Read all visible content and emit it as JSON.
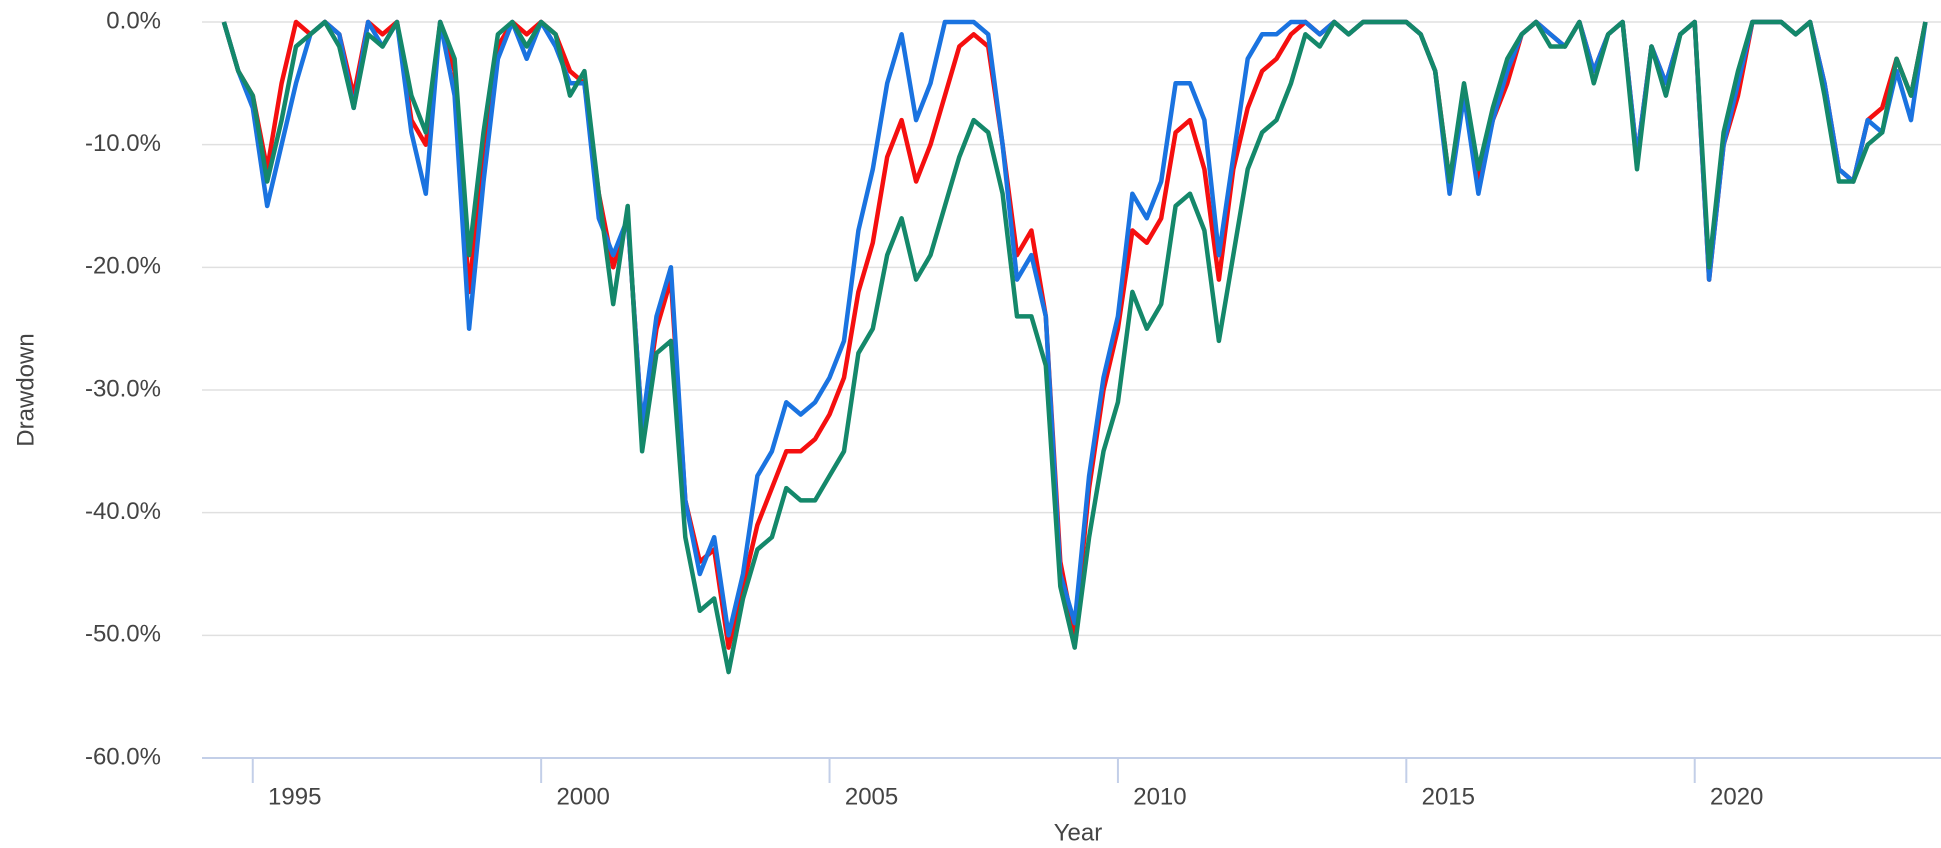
{
  "chart_data": {
    "type": "line",
    "x_label": "Year",
    "y_label": "Drawdown",
    "xlim": [
      1994.12,
      2024.27
    ],
    "ylim": [
      -60,
      0
    ],
    "xticks": [
      1995,
      2000,
      2005,
      2010,
      2015,
      2020
    ],
    "yticks": [
      {
        "value": 0,
        "label": "0.0%"
      },
      {
        "value": -10,
        "label": "-10.0%"
      },
      {
        "value": -20,
        "label": "-20.0%"
      },
      {
        "value": -30,
        "label": "-30.0%"
      },
      {
        "value": -40,
        "label": "-40.0%"
      },
      {
        "value": -50,
        "label": "-50.0%"
      },
      {
        "value": -60,
        "label": "-60.0%"
      }
    ],
    "grid": true,
    "x": [
      1994.5,
      1994.75,
      1995,
      1995.25,
      1995.5,
      1995.75,
      1996,
      1996.25,
      1996.5,
      1996.75,
      1997,
      1997.25,
      1997.5,
      1997.75,
      1998,
      1998.25,
      1998.5,
      1998.75,
      1999,
      1999.25,
      1999.5,
      1999.75,
      2000,
      2000.25,
      2000.5,
      2000.75,
      2001,
      2001.25,
      2001.5,
      2001.75,
      2002,
      2002.25,
      2002.5,
      2002.75,
      2003,
      2003.25,
      2003.5,
      2003.75,
      2004,
      2004.25,
      2004.5,
      2004.75,
      2005,
      2005.25,
      2005.5,
      2005.75,
      2006,
      2006.25,
      2006.5,
      2006.75,
      2007,
      2007.25,
      2007.5,
      2007.75,
      2008,
      2008.25,
      2008.5,
      2008.75,
      2009,
      2009.25,
      2009.5,
      2009.75,
      2010,
      2010.25,
      2010.5,
      2010.75,
      2011,
      2011.25,
      2011.5,
      2011.75,
      2012,
      2012.25,
      2012.5,
      2012.75,
      2013,
      2013.25,
      2013.5,
      2013.75,
      2014,
      2014.25,
      2014.5,
      2014.75,
      2015,
      2015.25,
      2015.5,
      2015.75,
      2016,
      2016.25,
      2016.5,
      2016.75,
      2017,
      2017.25,
      2017.5,
      2017.75,
      2018,
      2018.25,
      2018.5,
      2018.75,
      2019,
      2019.25,
      2019.5,
      2019.75,
      2020,
      2020.25,
      2020.5,
      2020.75,
      2021,
      2021.25,
      2021.5,
      2021.75,
      2022,
      2022.25,
      2022.5,
      2022.75,
      2023,
      2023.25,
      2023.5,
      2023.75,
      2024
    ],
    "series": [
      {
        "color": "#f50f0f",
        "values": [
          0,
          -4,
          -6,
          -12,
          -5,
          0,
          -1,
          0,
          -1,
          -6,
          0,
          -1,
          0,
          -8,
          -10,
          0,
          -4,
          -22,
          -10,
          -2,
          0,
          -1,
          0,
          -1,
          -4,
          -5,
          -14,
          -20,
          -16,
          -33,
          -25,
          -21,
          -39,
          -44,
          -43,
          -51,
          -46,
          -41,
          -38,
          -35,
          -35,
          -34,
          -32,
          -29,
          -22,
          -18,
          -11,
          -8,
          -13,
          -10,
          -6,
          -2,
          -1,
          -2,
          -10,
          -19,
          -17,
          -24,
          -44,
          -50,
          -38,
          -30,
          -25,
          -17,
          -18,
          -16,
          -9,
          -8,
          -12,
          -21,
          -12,
          -7,
          -4,
          -3,
          -1,
          0,
          -1,
          0,
          -1,
          0,
          0,
          0,
          0,
          -1,
          -4,
          -13,
          -6,
          -13,
          -8,
          -5,
          -1,
          0,
          -1,
          -2,
          0,
          -4,
          -1,
          0,
          -11,
          -2,
          -5,
          -1,
          0,
          -21,
          -10,
          -6,
          0,
          0,
          0,
          -1,
          0,
          -5,
          -12,
          -13,
          -8,
          -7,
          -3,
          -6,
          0
        ]
      },
      {
        "color": "#1a73e0",
        "values": [
          0,
          -4,
          -7,
          -15,
          -10,
          -5,
          -1,
          0,
          -1,
          -7,
          0,
          -2,
          0,
          -9,
          -14,
          0,
          -6,
          -25,
          -13,
          -3,
          0,
          -3,
          0,
          -2,
          -5,
          -5,
          -16,
          -19,
          -16,
          -33,
          -24,
          -20,
          -39,
          -45,
          -42,
          -50,
          -45,
          -37,
          -35,
          -31,
          -32,
          -31,
          -29,
          -26,
          -17,
          -12,
          -5,
          -1,
          -8,
          -5,
          0,
          0,
          0,
          -1,
          -10,
          -21,
          -19,
          -24,
          -45,
          -49,
          -37,
          -29,
          -24,
          -14,
          -16,
          -13,
          -5,
          -5,
          -8,
          -19,
          -11,
          -3,
          -1,
          -1,
          0,
          0,
          -1,
          0,
          -1,
          0,
          0,
          0,
          0,
          -1,
          -4,
          -14,
          -6,
          -14,
          -8,
          -4,
          -1,
          0,
          -1,
          -2,
          0,
          -4,
          -1,
          0,
          -11,
          -2,
          -5,
          -1,
          0,
          -21,
          -10,
          -5,
          0,
          0,
          0,
          -1,
          0,
          -5,
          -12,
          -13,
          -8,
          -9,
          -4,
          -8,
          0
        ]
      },
      {
        "color": "#14886a",
        "values": [
          0,
          -4,
          -6,
          -13,
          -8,
          -2,
          -1,
          0,
          -2,
          -7,
          -1,
          -2,
          0,
          -6,
          -9,
          0,
          -3,
          -19,
          -9,
          -1,
          0,
          -2,
          0,
          -1,
          -6,
          -4,
          -14,
          -23,
          -15,
          -35,
          -27,
          -26,
          -42,
          -48,
          -47,
          -53,
          -47,
          -43,
          -42,
          -38,
          -39,
          -39,
          -37,
          -35,
          -27,
          -25,
          -19,
          -16,
          -21,
          -19,
          -15,
          -11,
          -8,
          -9,
          -14,
          -24,
          -24,
          -28,
          -46,
          -51,
          -42,
          -35,
          -31,
          -22,
          -25,
          -23,
          -15,
          -14,
          -17,
          -26,
          -19,
          -12,
          -9,
          -8,
          -5,
          -1,
          -2,
          0,
          -1,
          0,
          0,
          0,
          0,
          -1,
          -4,
          -13,
          -5,
          -12,
          -7,
          -3,
          -1,
          0,
          -2,
          -2,
          0,
          -5,
          -1,
          0,
          -12,
          -2,
          -6,
          -1,
          0,
          -20,
          -9,
          -4,
          0,
          0,
          0,
          -1,
          0,
          -6,
          -13,
          -13,
          -10,
          -9,
          -3,
          -6,
          0
        ]
      }
    ]
  }
}
